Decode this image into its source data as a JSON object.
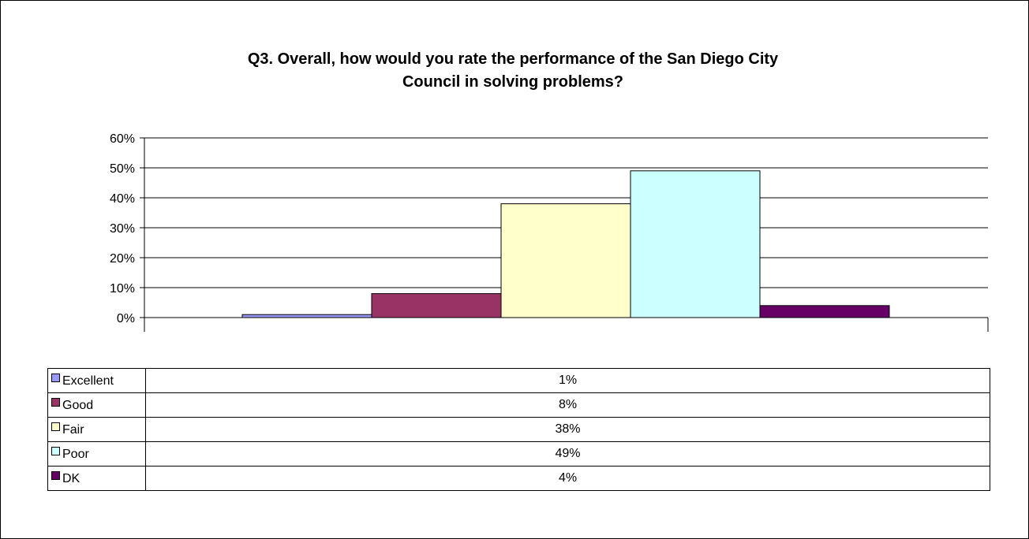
{
  "chart_data": {
    "type": "bar",
    "title_lines": [
      "Q3. Overall, how would you rate the performance of the San Diego City",
      "Council in solving problems?"
    ],
    "ylim": [
      0,
      60
    ],
    "y_ticks": [
      "0%",
      "10%",
      "20%",
      "30%",
      "40%",
      "50%",
      "60%"
    ],
    "grid": true,
    "legend": "data table below chart",
    "series": [
      {
        "name": "Excellent",
        "value": 1,
        "label": "1%",
        "color": "#9999ff"
      },
      {
        "name": "Good",
        "value": 8,
        "label": "8%",
        "color": "#993366"
      },
      {
        "name": "Fair",
        "value": 38,
        "label": "38%",
        "color": "#ffffcc"
      },
      {
        "name": "Poor",
        "value": 49,
        "label": "49%",
        "color": "#ccffff"
      },
      {
        "name": "DK",
        "value": 4,
        "label": "4%",
        "color": "#660066"
      }
    ]
  }
}
